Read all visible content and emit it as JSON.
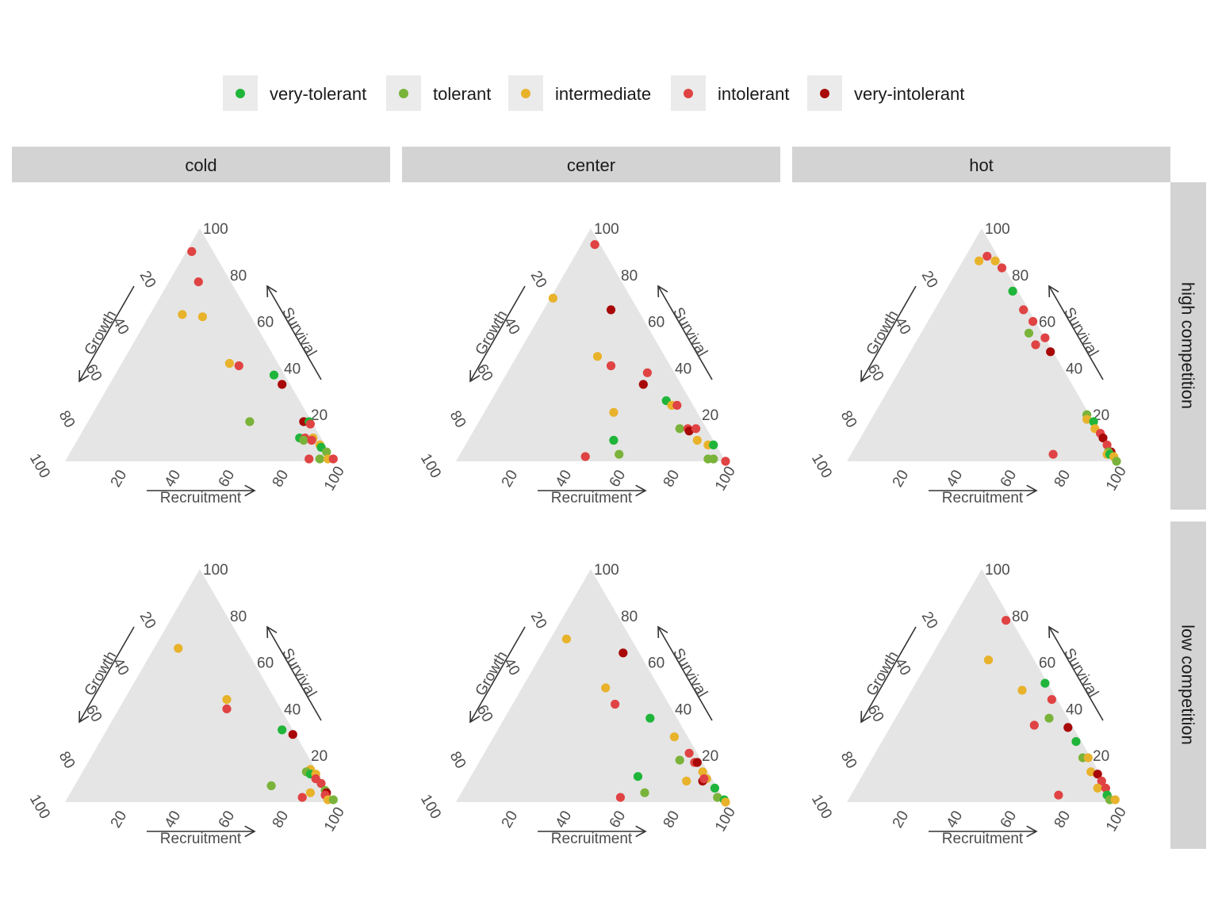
{
  "legend": {
    "items": [
      {
        "label": "very-tolerant",
        "color": "#1fb53a"
      },
      {
        "label": "tolerant",
        "color": "#7ab33a"
      },
      {
        "label": "intermediate",
        "color": "#e8b22b"
      },
      {
        "label": "intolerant",
        "color": "#e04343"
      },
      {
        "label": "very-intolerant",
        "color": "#a80808"
      }
    ]
  },
  "columns": [
    "cold",
    "center",
    "hot"
  ],
  "rows": [
    "high competition",
    "low competition"
  ],
  "chart_data": {
    "type": "scatter",
    "subtype": "ternary",
    "axes": {
      "top": "Survival",
      "left": "Growth",
      "right": "Recruitment",
      "ticks": [
        "20",
        "40",
        "60",
        "80",
        "100"
      ],
      "range": [
        0,
        100
      ]
    },
    "grid": false,
    "legend_position": "top",
    "panels": [
      {
        "row": "high competition",
        "column": "cold",
        "points": [
          {
            "c": 3,
            "survival": 90,
            "growth": 8
          },
          {
            "c": 3,
            "survival": 77,
            "growth": 12
          },
          {
            "c": 2,
            "survival": 63,
            "growth": 25
          },
          {
            "c": 2,
            "survival": 62,
            "growth": 18
          },
          {
            "c": 2,
            "survival": 42,
            "growth": 18
          },
          {
            "c": 3,
            "survival": 41,
            "growth": 15
          },
          {
            "c": 0,
            "survival": 37,
            "growth": 4
          },
          {
            "c": 4,
            "survival": 33,
            "growth": 3
          },
          {
            "c": 1,
            "survival": 17,
            "growth": 23
          },
          {
            "c": 4,
            "survival": 17,
            "growth": 3
          },
          {
            "c": 0,
            "survival": 17,
            "growth": 1
          },
          {
            "c": 3,
            "survival": 16,
            "growth": 1
          },
          {
            "c": 0,
            "survival": 10,
            "growth": 8
          },
          {
            "c": 3,
            "survival": 10,
            "growth": 6
          },
          {
            "c": 1,
            "survival": 9,
            "growth": 7
          },
          {
            "c": 2,
            "survival": 10,
            "growth": 3
          },
          {
            "c": 3,
            "survival": 9,
            "growth": 4
          },
          {
            "c": 2,
            "survival": 7,
            "growth": 2
          },
          {
            "c": 0,
            "survival": 6,
            "growth": 2
          },
          {
            "c": 1,
            "survival": 4,
            "growth": 1
          },
          {
            "c": 3,
            "survival": 1,
            "growth": 9
          },
          {
            "c": 1,
            "survival": 1,
            "growth": 5
          },
          {
            "c": 2,
            "survival": 1,
            "growth": 2
          },
          {
            "c": 3,
            "survival": 1,
            "growth": 0
          }
        ]
      },
      {
        "row": "high competition",
        "column": "center",
        "points": [
          {
            "c": 3,
            "survival": 93,
            "growth": 2
          },
          {
            "c": 2,
            "survival": 70,
            "growth": 29
          },
          {
            "c": 4,
            "survival": 65,
            "growth": 10
          },
          {
            "c": 2,
            "survival": 45,
            "growth": 25
          },
          {
            "c": 3,
            "survival": 41,
            "growth": 22
          },
          {
            "c": 3,
            "survival": 38,
            "growth": 10
          },
          {
            "c": 4,
            "survival": 33,
            "growth": 14
          },
          {
            "c": 0,
            "survival": 26,
            "growth": 9
          },
          {
            "c": 2,
            "survival": 24,
            "growth": 8
          },
          {
            "c": 3,
            "survival": 24,
            "growth": 6
          },
          {
            "c": 2,
            "survival": 21,
            "growth": 31
          },
          {
            "c": 1,
            "survival": 14,
            "growth": 10
          },
          {
            "c": 3,
            "survival": 14,
            "growth": 7
          },
          {
            "c": 4,
            "survival": 13,
            "growth": 7
          },
          {
            "c": 3,
            "survival": 14,
            "growth": 4
          },
          {
            "c": 0,
            "survival": 9,
            "growth": 37
          },
          {
            "c": 2,
            "survival": 9,
            "growth": 6
          },
          {
            "c": 2,
            "survival": 7,
            "growth": 3
          },
          {
            "c": 0,
            "survival": 7,
            "growth": 1
          },
          {
            "c": 1,
            "survival": 3,
            "growth": 38
          },
          {
            "c": 3,
            "survival": 2,
            "growth": 51
          },
          {
            "c": 1,
            "survival": 1,
            "growth": 6
          },
          {
            "c": 1,
            "survival": 1,
            "growth": 4
          },
          {
            "c": 3,
            "survival": 0,
            "growth": 0
          }
        ]
      },
      {
        "row": "high competition",
        "column": "hot",
        "points": [
          {
            "c": 2,
            "survival": 86,
            "growth": 8
          },
          {
            "c": 3,
            "survival": 88,
            "growth": 4
          },
          {
            "c": 2,
            "survival": 86,
            "growth": 2
          },
          {
            "c": 3,
            "survival": 83,
            "growth": 1
          },
          {
            "c": 0,
            "survival": 73,
            "growth": 2
          },
          {
            "c": 3,
            "survival": 65,
            "growth": 2
          },
          {
            "c": 3,
            "survival": 60,
            "growth": 1
          },
          {
            "c": 1,
            "survival": 55,
            "growth": 5
          },
          {
            "c": 3,
            "survival": 50,
            "growth": 5
          },
          {
            "c": 3,
            "survival": 53,
            "growth": 0
          },
          {
            "c": 4,
            "survival": 47,
            "growth": 1
          },
          {
            "c": 1,
            "survival": 20,
            "growth": 1
          },
          {
            "c": 2,
            "survival": 18,
            "growth": 2
          },
          {
            "c": 0,
            "survival": 17,
            "growth": 0
          },
          {
            "c": 2,
            "survival": 14,
            "growth": 1
          },
          {
            "c": 3,
            "survival": 12,
            "growth": 0
          },
          {
            "c": 4,
            "survival": 10,
            "growth": 0
          },
          {
            "c": 3,
            "survival": 7,
            "growth": 0
          },
          {
            "c": 4,
            "survival": 4,
            "growth": 0
          },
          {
            "c": 1,
            "survival": 4,
            "growth": 1
          },
          {
            "c": 2,
            "survival": 3,
            "growth": 2
          },
          {
            "c": 0,
            "survival": 3,
            "growth": 1
          },
          {
            "c": 2,
            "survival": 2,
            "growth": 0
          },
          {
            "c": 3,
            "survival": 3,
            "growth": 22
          },
          {
            "c": 1,
            "survival": 0,
            "growth": 0
          }
        ]
      },
      {
        "row": "low competition",
        "column": "cold",
        "points": [
          {
            "c": 2,
            "survival": 66,
            "growth": 25
          },
          {
            "c": 2,
            "survival": 44,
            "growth": 18
          },
          {
            "c": 3,
            "survival": 40,
            "growth": 20
          },
          {
            "c": 0,
            "survival": 31,
            "growth": 4
          },
          {
            "c": 4,
            "survival": 29,
            "growth": 1
          },
          {
            "c": 2,
            "survival": 14,
            "growth": 2
          },
          {
            "c": 1,
            "survival": 13,
            "growth": 4
          },
          {
            "c": 0,
            "survival": 12,
            "growth": 3
          },
          {
            "c": 2,
            "survival": 12,
            "growth": 1
          },
          {
            "c": 3,
            "survival": 10,
            "growth": 2
          },
          {
            "c": 3,
            "survival": 8,
            "growth": 1
          },
          {
            "c": 1,
            "survival": 7,
            "growth": 20
          },
          {
            "c": 1,
            "survival": 5,
            "growth": 1
          },
          {
            "c": 2,
            "survival": 4,
            "growth": 7
          },
          {
            "c": 3,
            "survival": 2,
            "growth": 11
          },
          {
            "c": 4,
            "survival": 4,
            "growth": 1
          },
          {
            "c": 3,
            "survival": 3,
            "growth": 2
          },
          {
            "c": 2,
            "survival": 1,
            "growth": 2
          },
          {
            "c": 1,
            "survival": 1,
            "growth": 0
          }
        ]
      },
      {
        "row": "low competition",
        "column": "center",
        "points": [
          {
            "c": 2,
            "survival": 70,
            "growth": 24
          },
          {
            "c": 4,
            "survival": 64,
            "growth": 6
          },
          {
            "c": 2,
            "survival": 49,
            "growth": 20
          },
          {
            "c": 3,
            "survival": 42,
            "growth": 20
          },
          {
            "c": 0,
            "survival": 36,
            "growth": 10
          },
          {
            "c": 2,
            "survival": 28,
            "growth": 5
          },
          {
            "c": 3,
            "survival": 21,
            "growth": 3
          },
          {
            "c": 1,
            "survival": 18,
            "growth": 8
          },
          {
            "c": 3,
            "survival": 17,
            "growth": 3
          },
          {
            "c": 4,
            "survival": 17,
            "growth": 2
          },
          {
            "c": 2,
            "survival": 13,
            "growth": 2
          },
          {
            "c": 2,
            "survival": 10,
            "growth": 2
          },
          {
            "c": 4,
            "survival": 9,
            "growth": 4
          },
          {
            "c": 3,
            "survival": 10,
            "growth": 3
          },
          {
            "c": 0,
            "survival": 11,
            "growth": 27
          },
          {
            "c": 2,
            "survival": 9,
            "growth": 10
          },
          {
            "c": 0,
            "survival": 6,
            "growth": 1
          },
          {
            "c": 1,
            "survival": 4,
            "growth": 28
          },
          {
            "c": 3,
            "survival": 2,
            "growth": 38
          },
          {
            "c": 1,
            "survival": 2,
            "growth": 2
          },
          {
            "c": 0,
            "survival": 1,
            "growth": 0
          },
          {
            "c": 2,
            "survival": 0,
            "growth": 0
          }
        ]
      },
      {
        "row": "low competition",
        "column": "hot",
        "points": [
          {
            "c": 3,
            "survival": 78,
            "growth": 2
          },
          {
            "c": 2,
            "survival": 61,
            "growth": 17
          },
          {
            "c": 0,
            "survival": 51,
            "growth": 1
          },
          {
            "c": 2,
            "survival": 48,
            "growth": 11
          },
          {
            "c": 3,
            "survival": 44,
            "growth": 2
          },
          {
            "c": 1,
            "survival": 36,
            "growth": 7
          },
          {
            "c": 3,
            "survival": 33,
            "growth": 14
          },
          {
            "c": 4,
            "survival": 32,
            "growth": 2
          },
          {
            "c": 0,
            "survival": 26,
            "growth": 2
          },
          {
            "c": 1,
            "survival": 19,
            "growth": 3
          },
          {
            "c": 2,
            "survival": 19,
            "growth": 1
          },
          {
            "c": 2,
            "survival": 13,
            "growth": 3
          },
          {
            "c": 4,
            "survival": 12,
            "growth": 1
          },
          {
            "c": 3,
            "survival": 9,
            "growth": 1
          },
          {
            "c": 2,
            "survival": 6,
            "growth": 4
          },
          {
            "c": 3,
            "survival": 6,
            "growth": 1
          },
          {
            "c": 0,
            "survival": 3,
            "growth": 2
          },
          {
            "c": 1,
            "survival": 1,
            "growth": 2
          },
          {
            "c": 3,
            "survival": 3,
            "growth": 20
          },
          {
            "c": 2,
            "survival": 1,
            "growth": 0
          }
        ]
      }
    ]
  }
}
